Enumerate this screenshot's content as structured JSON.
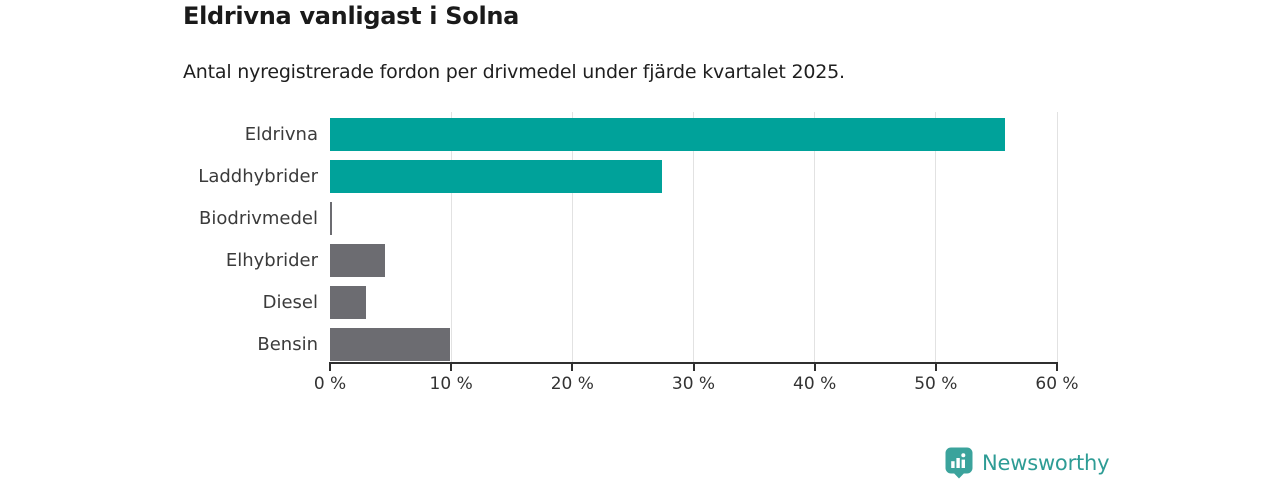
{
  "header": {
    "title": "Eldrivna vanligast i Solna",
    "subtitle": "Antal nyregistrerade fordon per drivmedel under fjärde kvartalet 2025."
  },
  "chart_data": {
    "type": "bar",
    "orientation": "horizontal",
    "title": "Eldrivna vanligast i Solna",
    "subtitle": "Antal nyregistrerade fordon per drivmedel under fjärde kvartalet 2025.",
    "categories": [
      "Eldrivna",
      "Laddhybrider",
      "Biodrivmedel",
      "Elhybrider",
      "Diesel",
      "Bensin"
    ],
    "values": [
      55.7,
      27.4,
      0.15,
      4.5,
      3.0,
      9.9
    ],
    "unit": "%",
    "bar_colors": [
      "#00A29A",
      "#00A29A",
      "#6C6C71",
      "#6C6C71",
      "#6C6C71",
      "#6C6C71"
    ],
    "xlabel": "",
    "ylabel": "",
    "xlim": [
      0,
      60
    ],
    "x_ticks": [
      0,
      10,
      20,
      30,
      40,
      50,
      60
    ],
    "x_tick_labels": [
      "0 %",
      "10 %",
      "20 %",
      "30 %",
      "40 %",
      "50 %",
      "60 %"
    ],
    "grid": true,
    "legend_position": "none",
    "accent_color": "#00A29A",
    "muted_color": "#6C6C71",
    "gridline_color": "#e2e2e2",
    "axis_color": "#2f2f2f"
  },
  "footer": {
    "brand": "Newsworthy",
    "logo_icon": "bar-chart-pin-icon",
    "brand_text_color": "#2e9c95",
    "icon_color": "#3ba39c"
  }
}
